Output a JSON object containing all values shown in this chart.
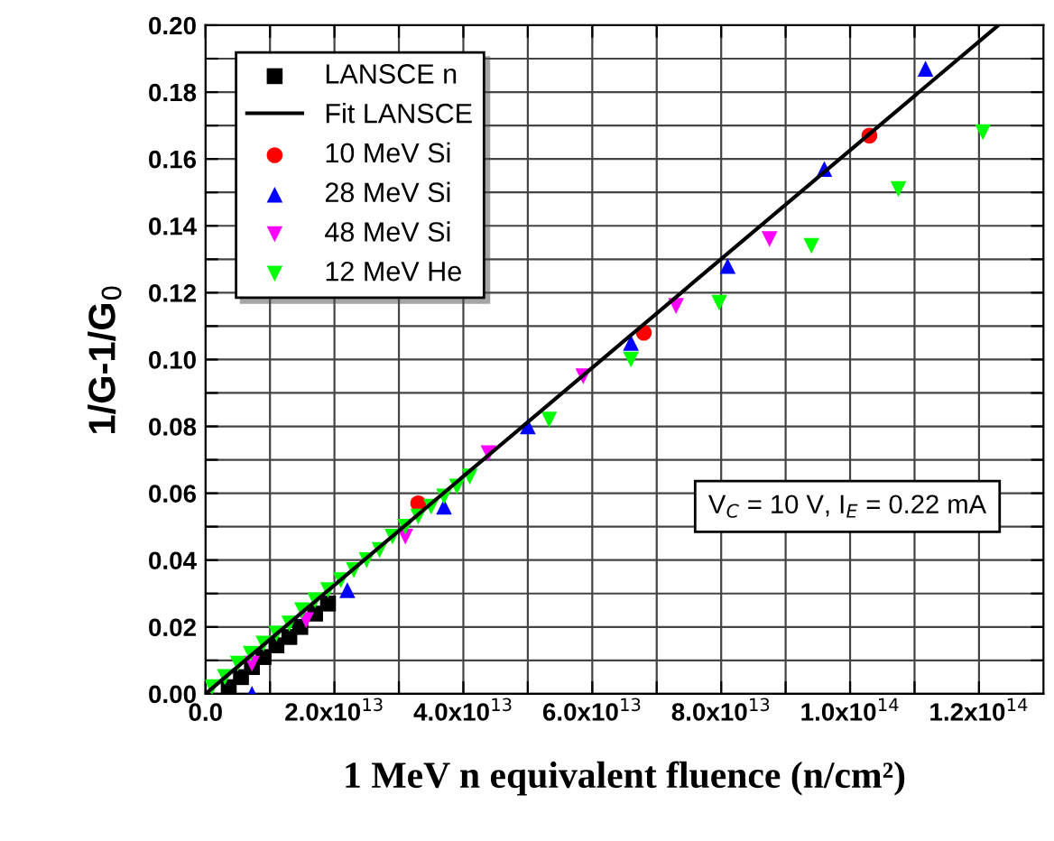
{
  "chart_data": {
    "type": "scatter",
    "xlabel": "1 MeV n equivalent fluence (n/cm²)",
    "ylabel": "1/G-1/G$_{0}$",
    "annotations": [
      "V$_{C}$ = 10 V, I$_{E}$ = 0.22 mA"
    ],
    "xlim": [
      0,
      130000000000000.0
    ],
    "ylim": [
      0,
      0.2
    ],
    "xticks": [
      {
        "value": 0,
        "label": "0.0"
      },
      {
        "value": 10000000000000.0,
        "label": null
      },
      {
        "value": 20000000000000.0,
        "label": "2.0x10$^{13}$"
      },
      {
        "value": 30000000000000.0,
        "label": null
      },
      {
        "value": 40000000000000.0,
        "label": "4.0x10$^{13}$"
      },
      {
        "value": 50000000000000.0,
        "label": null
      },
      {
        "value": 60000000000000.0,
        "label": "6.0x10$^{13}$"
      },
      {
        "value": 70000000000000.0,
        "label": null
      },
      {
        "value": 80000000000000.0,
        "label": "8.0x10$^{13}$"
      },
      {
        "value": 90000000000000.0,
        "label": null
      },
      {
        "value": 100000000000000.0,
        "label": "1.0x10$^{14}$"
      },
      {
        "value": 110000000000000.0,
        "label": null
      },
      {
        "value": 120000000000000.0,
        "label": "1.2x10$^{14}$"
      }
    ],
    "yticks": [
      {
        "value": 0,
        "label": "0.00"
      },
      {
        "value": 0.01,
        "label": null
      },
      {
        "value": 0.02,
        "label": "0.02"
      },
      {
        "value": 0.03,
        "label": null
      },
      {
        "value": 0.04,
        "label": "0.04"
      },
      {
        "value": 0.05,
        "label": null
      },
      {
        "value": 0.06,
        "label": "0.06"
      },
      {
        "value": 0.07,
        "label": null
      },
      {
        "value": 0.08,
        "label": "0.08"
      },
      {
        "value": 0.09,
        "label": null
      },
      {
        "value": 0.1,
        "label": "0.10"
      },
      {
        "value": 0.11,
        "label": null
      },
      {
        "value": 0.12,
        "label": "0.12"
      },
      {
        "value": 0.13,
        "label": null
      },
      {
        "value": 0.14,
        "label": "0.14"
      },
      {
        "value": 0.15,
        "label": null
      },
      {
        "value": 0.16,
        "label": "0.16"
      },
      {
        "value": 0.17,
        "label": null
      },
      {
        "value": 0.18,
        "label": "0.18"
      },
      {
        "value": 0.19,
        "label": null
      },
      {
        "value": 0.2,
        "label": "0.20"
      }
    ],
    "grid": true,
    "legend": "top left",
    "series": [
      {
        "name": "LANSCE n",
        "color": "#000000",
        "marker": "square",
        "x": [
          3600000000000.0,
          5500000000000.0,
          7200000000000.0,
          9000000000000.0,
          11000000000000.0,
          13000000000000.0,
          14700000000000.0,
          17000000000000.0,
          19000000000000.0
        ],
        "values": [
          0.002,
          0.005,
          0.008,
          0.011,
          0.0145,
          0.017,
          0.02,
          0.024,
          0.027
        ]
      },
      {
        "name": "Fit LANSCE",
        "type": "line",
        "color": "#000000",
        "marker": "none",
        "line_style": "solid",
        "x": [
          0,
          123000000000000.0
        ],
        "values": [
          0,
          0.2
        ]
      },
      {
        "name": "10 MeV Si",
        "color": "#ff0000",
        "marker": "circle",
        "x": [
          33000000000000.0,
          68000000000000.0,
          103000000000000.0
        ],
        "values": [
          0.057,
          0.108,
          0.167
        ]
      },
      {
        "name": "28 MeV Si",
        "color": "#0000ff",
        "marker": "triangle",
        "x": [
          7200000000000.0,
          22000000000000.0,
          37000000000000.0,
          50000000000000.0,
          66000000000000.0,
          81000000000000.0,
          96000000000000.0,
          111700000000000.0
        ],
        "values": [
          0.0,
          0.031,
          0.056,
          0.08,
          0.105,
          0.128,
          0.157,
          0.187
        ]
      },
      {
        "name": "48 MeV Si",
        "color": "#ff00ff",
        "marker": "triangle_down",
        "x": [
          7200000000000.0,
          15600000000000.0,
          31000000000000.0,
          43900000000000.0,
          58600000000000.0,
          73000000000000.0,
          87500000000000.0
        ],
        "values": [
          0.009,
          0.022,
          0.047,
          0.072,
          0.095,
          0.116,
          0.136
        ]
      },
      {
        "name": "12 MeV He",
        "color": "#00ff00",
        "marker": "triangle_down",
        "x": [
          1000000000000.0,
          3000000000000.0,
          5000000000000.0,
          7000000000000.0,
          9000000000000.0,
          11000000000000.0,
          13000000000000.0,
          15000000000000.0,
          17000000000000.0,
          19000000000000.0,
          21000000000000.0,
          23000000000000.0,
          25000000000000.0,
          27000000000000.0,
          29000000000000.0,
          31000000000000.0,
          33000000000000.0,
          35000000000000.0,
          37000000000000.0,
          39000000000000.0,
          41000000000000.0,
          53300000000000.0,
          66000000000000.0,
          79700000000000.0,
          94000000000000.0,
          107500000000000.0,
          120600000000000.0
        ],
        "values": [
          0.002,
          0.005,
          0.009,
          0.012,
          0.015,
          0.018,
          0.021,
          0.025,
          0.028,
          0.031,
          0.034,
          0.037,
          0.04,
          0.043,
          0.047,
          0.05,
          0.053,
          0.056,
          0.059,
          0.062,
          0.065,
          0.082,
          0.1,
          0.117,
          0.134,
          0.151,
          0.168
        ]
      }
    ]
  }
}
